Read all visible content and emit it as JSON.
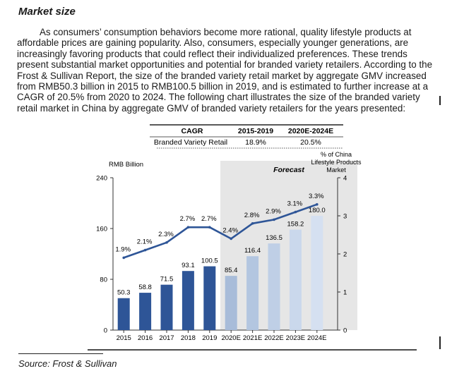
{
  "section": {
    "title": "Market size",
    "paragraph": "As consumers’ consumption behaviors become more rational, quality lifestyle products at affordable prices are gaining popularity. Also, consumers, especially younger generations, are increasingly favoring products that could reflect their individualized preferences. These trends present substantial market opportunities and potential for branded variety retailers. According to the Frost & Sullivan Report, the size of the branded variety retail market by aggregate GMV increased from RMB50.3 billion in 2015 to RMB100.5 billion in 2019, and is estimated to further increase at a CAGR of 20.5% from 2020 to 2024. The following chart illustrates the size of the branded variety retail market in China by aggregate GMV of branded variety retailers for the years presented:",
    "source": "Source: Frost & Sullivan"
  },
  "cagr_table": {
    "headers": [
      "CAGR",
      "2015-2019",
      "2020E-2024E"
    ],
    "row": [
      "Branded Variety Retail",
      "18.9%",
      "20.5%"
    ]
  },
  "colors": {
    "bar_historical": "#2e5597",
    "bar_forecast": [
      "#a8bcd9",
      "#b3c6e0",
      "#bfcfe6",
      "#cad8ec",
      "#d5e0f1"
    ],
    "line": "#2e5597",
    "forecast_shade": "#e6e6e6"
  },
  "chart_data": {
    "type": "bar",
    "categories": [
      "2015",
      "2016",
      "2017",
      "2018",
      "2019",
      "2020E",
      "2021E",
      "2022E",
      "2023E",
      "2024E"
    ],
    "values": [
      50.3,
      58.8,
      71.5,
      93.1,
      100.5,
      85.4,
      116.4,
      136.5,
      158.2,
      180.0
    ],
    "value_labels": [
      "50.3",
      "58.8",
      "71.5",
      "93.1",
      "100.5",
      "85.4",
      "116.4",
      "136.5",
      "158.2",
      "180.0"
    ],
    "ylabel": "RMB Billion",
    "ylim": [
      0,
      240
    ],
    "yticks": [
      "0",
      "80",
      "160",
      "240"
    ],
    "forecast_label": "Forecast",
    "forecast_start": "2020E",
    "series": [
      {
        "type": "line",
        "values": [
          1.9,
          2.1,
          2.3,
          2.7,
          2.7,
          2.4,
          2.8,
          2.9,
          3.1,
          3.3
        ],
        "value_labels": [
          "1.9%",
          "2.1%",
          "2.3%",
          "2.7%",
          "2.7%",
          "2.4%",
          "2.8%",
          "2.9%",
          "3.1%",
          "3.3%"
        ],
        "axis": "right"
      }
    ],
    "y2label": "% of China Lifestyle Products Market",
    "y2lim": [
      0,
      4
    ],
    "y2ticks": [
      "0",
      "1",
      "2",
      "3",
      "4"
    ]
  }
}
